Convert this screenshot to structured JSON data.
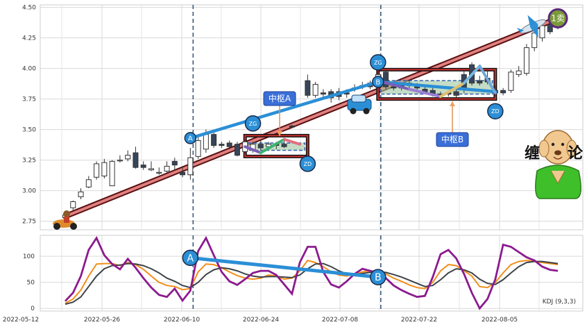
{
  "chart_data": [
    {
      "type": "candlestick",
      "title": "",
      "xlabel": "",
      "ylabel": "",
      "ylim": [
        2.68,
        4.52
      ],
      "yticks": [
        "2.75",
        "3.00",
        "3.25",
        "3.50",
        "3.75",
        "4.00",
        "4.25",
        "4.50"
      ],
      "xticks": [
        "2022-05-12",
        "2022-05-26",
        "2022-06-10",
        "2022-06-24",
        "2022-07-08",
        "2022-07-22",
        "2022-08-05"
      ],
      "grid": true,
      "candles": [
        {
          "x": 0.0,
          "o": 2.78,
          "c": 2.8,
          "h": 2.82,
          "l": 2.74,
          "up": true
        },
        {
          "x": 1.0,
          "o": 2.86,
          "c": 2.91,
          "h": 2.92,
          "l": 2.84,
          "up": true
        },
        {
          "x": 2.0,
          "o": 2.95,
          "c": 2.99,
          "h": 3.02,
          "l": 2.93,
          "up": true
        },
        {
          "x": 3.0,
          "o": 3.03,
          "c": 3.09,
          "h": 3.12,
          "l": 3.02,
          "up": true
        },
        {
          "x": 4.0,
          "o": 3.11,
          "c": 3.22,
          "h": 3.24,
          "l": 3.09,
          "up": true
        },
        {
          "x": 5.0,
          "o": 3.12,
          "c": 3.23,
          "h": 3.26,
          "l": 3.1,
          "up": true
        },
        {
          "x": 6.0,
          "o": 3.04,
          "c": 3.24,
          "h": 3.25,
          "l": 3.04,
          "up": true
        },
        {
          "x": 7.0,
          "o": 3.25,
          "c": 3.25,
          "h": 3.29,
          "l": 3.23,
          "up": true
        },
        {
          "x": 8.0,
          "o": 3.26,
          "c": 3.29,
          "h": 3.33,
          "l": 3.24,
          "up": true
        },
        {
          "x": 9.0,
          "o": 3.31,
          "c": 3.19,
          "h": 3.36,
          "l": 3.18,
          "up": false
        },
        {
          "x": 10.0,
          "o": 3.21,
          "c": 3.19,
          "h": 3.24,
          "l": 3.17,
          "up": false
        },
        {
          "x": 11.0,
          "o": 3.17,
          "c": 3.18,
          "h": 3.24,
          "l": 3.16,
          "up": true
        },
        {
          "x": 12.0,
          "o": 3.15,
          "c": 3.15,
          "h": 3.19,
          "l": 3.13,
          "up": true
        },
        {
          "x": 13.0,
          "o": 3.16,
          "c": 3.2,
          "h": 3.24,
          "l": 3.14,
          "up": true
        },
        {
          "x": 14.0,
          "o": 3.24,
          "c": 3.21,
          "h": 3.27,
          "l": 3.17,
          "up": false
        },
        {
          "x": 15.0,
          "o": 3.15,
          "c": 3.13,
          "h": 3.2,
          "l": 3.11,
          "up": false
        },
        {
          "x": 16.0,
          "o": 3.13,
          "c": 3.27,
          "h": 3.35,
          "l": 3.09,
          "up": true
        },
        {
          "x": 17.0,
          "o": 3.28,
          "c": 3.41,
          "h": 3.44,
          "l": 3.26,
          "up": true
        },
        {
          "x": 18.0,
          "o": 3.34,
          "c": 3.46,
          "h": 3.5,
          "l": 3.31,
          "up": true
        },
        {
          "x": 19.0,
          "o": 3.46,
          "c": 3.37,
          "h": 3.48,
          "l": 3.35,
          "up": false
        },
        {
          "x": 20.0,
          "o": 3.38,
          "c": 3.37,
          "h": 3.4,
          "l": 3.35,
          "up": false
        },
        {
          "x": 21.0,
          "o": 3.39,
          "c": 3.36,
          "h": 3.41,
          "l": 3.34,
          "up": false
        },
        {
          "x": 22.0,
          "o": 3.38,
          "c": 3.29,
          "h": 3.4,
          "l": 3.28,
          "up": false
        },
        {
          "x": 23.0,
          "o": 3.32,
          "c": 3.4,
          "h": 3.42,
          "l": 3.3,
          "up": true
        },
        {
          "x": 24.0,
          "o": 3.33,
          "c": 3.38,
          "h": 3.4,
          "l": 3.31,
          "up": true
        },
        {
          "x": 25.0,
          "o": 3.38,
          "c": 3.35,
          "h": 3.41,
          "l": 3.33,
          "up": false
        },
        {
          "x": 26.0,
          "o": 3.36,
          "c": 3.38,
          "h": 3.4,
          "l": 3.34,
          "up": true
        },
        {
          "x": 27.0,
          "o": 3.38,
          "c": 3.37,
          "h": 3.4,
          "l": 3.34,
          "up": false
        },
        {
          "x": 28.0,
          "o": 3.38,
          "c": 3.36,
          "h": 3.41,
          "l": 3.35,
          "up": false
        },
        {
          "x": 29.0,
          "o": 3.53,
          "c": 3.52,
          "h": 3.54,
          "l": 3.51,
          "up": false
        },
        {
          "x": 31.0,
          "o": 3.9,
          "c": 3.78,
          "h": 3.95,
          "l": 3.76,
          "up": false
        },
        {
          "x": 32.0,
          "o": 3.78,
          "c": 3.87,
          "h": 3.89,
          "l": 3.76,
          "up": true
        },
        {
          "x": 33.0,
          "o": 3.8,
          "c": 3.79,
          "h": 3.83,
          "l": 3.76,
          "up": false
        },
        {
          "x": 34.0,
          "o": 3.81,
          "c": 3.76,
          "h": 3.83,
          "l": 3.72,
          "up": false
        },
        {
          "x": 35.0,
          "o": 3.81,
          "c": 3.77,
          "h": 3.84,
          "l": 3.74,
          "up": false
        },
        {
          "x": 36.0,
          "o": 3.8,
          "c": 3.79,
          "h": 3.83,
          "l": 3.76,
          "up": false
        },
        {
          "x": 37.0,
          "o": 3.84,
          "c": 3.84,
          "h": 3.87,
          "l": 3.81,
          "up": true
        },
        {
          "x": 38.0,
          "o": 3.86,
          "c": 3.86,
          "h": 3.89,
          "l": 3.83,
          "up": true
        },
        {
          "x": 39.0,
          "o": 3.88,
          "c": 3.85,
          "h": 3.9,
          "l": 3.83,
          "up": false
        },
        {
          "x": 40.0,
          "o": 3.9,
          "c": 3.95,
          "h": 4.0,
          "l": 3.87,
          "up": true
        },
        {
          "x": 41.0,
          "o": 3.97,
          "c": 3.85,
          "h": 3.99,
          "l": 3.83,
          "up": false
        },
        {
          "x": 42.0,
          "o": 3.85,
          "c": 3.84,
          "h": 3.87,
          "l": 3.82,
          "up": false
        },
        {
          "x": 43.0,
          "o": 3.86,
          "c": 3.84,
          "h": 3.88,
          "l": 3.82,
          "up": false
        },
        {
          "x": 44.0,
          "o": 3.88,
          "c": 3.86,
          "h": 3.9,
          "l": 3.84,
          "up": false
        },
        {
          "x": 45.0,
          "o": 3.86,
          "c": 3.84,
          "h": 3.88,
          "l": 3.82,
          "up": false
        },
        {
          "x": 46.0,
          "o": 3.83,
          "c": 3.81,
          "h": 3.85,
          "l": 3.79,
          "up": false
        },
        {
          "x": 47.0,
          "o": 3.82,
          "c": 3.79,
          "h": 3.84,
          "l": 3.77,
          "up": false
        },
        {
          "x": 48.0,
          "o": 3.79,
          "c": 3.78,
          "h": 3.81,
          "l": 3.76,
          "up": false
        },
        {
          "x": 49.0,
          "o": 3.8,
          "c": 3.79,
          "h": 3.82,
          "l": 3.77,
          "up": false
        },
        {
          "x": 50.0,
          "o": 3.81,
          "c": 3.78,
          "h": 3.83,
          "l": 3.76,
          "up": false
        },
        {
          "x": 51.0,
          "o": 3.95,
          "c": 3.83,
          "h": 3.98,
          "l": 3.8,
          "up": false
        },
        {
          "x": 52.0,
          "o": 4.03,
          "c": 3.88,
          "h": 4.05,
          "l": 3.86,
          "up": false
        },
        {
          "x": 53.0,
          "o": 3.9,
          "c": 3.88,
          "h": 3.94,
          "l": 3.86,
          "up": false
        },
        {
          "x": 54.0,
          "o": 3.92,
          "c": 3.89,
          "h": 3.99,
          "l": 3.87,
          "up": false
        },
        {
          "x": 55.0,
          "o": 3.82,
          "c": 3.8,
          "h": 3.86,
          "l": 3.77,
          "up": false
        },
        {
          "x": 56.0,
          "o": 3.82,
          "c": 3.8,
          "h": 3.84,
          "l": 3.78,
          "up": false
        },
        {
          "x": 57.0,
          "o": 3.82,
          "c": 3.97,
          "h": 3.99,
          "l": 3.8,
          "up": true
        },
        {
          "x": 58.0,
          "o": 3.95,
          "c": 3.98,
          "h": 4.02,
          "l": 3.93,
          "up": true
        },
        {
          "x": 59.0,
          "o": 3.96,
          "c": 4.17,
          "h": 4.2,
          "l": 3.94,
          "up": true
        },
        {
          "x": 60.0,
          "o": 4.17,
          "c": 4.29,
          "h": 4.32,
          "l": 4.14,
          "up": true
        },
        {
          "x": 61.0,
          "o": 4.25,
          "c": 4.35,
          "h": 4.38,
          "l": 4.22,
          "up": true
        },
        {
          "x": 62.0,
          "o": 4.36,
          "c": 4.3,
          "h": 4.4,
          "l": 4.28,
          "up": false
        },
        {
          "x": 63.0,
          "o": 4.35,
          "c": 4.39,
          "h": 4.42,
          "l": 4.32,
          "up": true
        }
      ],
      "trend_line": {
        "from": {
          "x": 0.0,
          "y": 2.79
        },
        "to": {
          "x": 63.0,
          "y": 4.41
        }
      },
      "bi_lines": [
        {
          "from": {
            "x": 16.0,
            "y": 3.43
          },
          "to": {
            "x": 40.0,
            "y": 3.89
          },
          "color": "#2b8fd6"
        },
        {
          "from": {
            "x": 40.0,
            "y": 3.89
          },
          "to": {
            "x": 55.0,
            "y": 3.81
          },
          "color": "#2b8fd6"
        }
      ],
      "zhongshu": [
        {
          "label": "中枢A",
          "x1": 23.0,
          "x2": 31.0,
          "y1": 3.28,
          "y2": 3.45,
          "inner_y1": 3.33,
          "inner_y2": 3.39,
          "zg": 3.45,
          "zd": 3.28
        },
        {
          "label": "中枢B",
          "x1": 40.0,
          "x2": 55.0,
          "y1": 3.75,
          "y2": 3.99,
          "inner_y1": 3.79,
          "inner_y2": 3.9,
          "zg": 3.99,
          "zd": 3.75
        }
      ],
      "zhongshu_segments": [
        {
          "pts": [
            [
              23.0,
              3.36
            ],
            [
              25.0,
              3.31
            ],
            [
              28.0,
              3.42
            ],
            [
              30.0,
              3.38
            ]
          ],
          "colors": [
            "#7a5fb8",
            "#3cb371",
            "#e07080"
          ]
        },
        {
          "pts": [
            [
              40.0,
              3.9
            ],
            [
              44.0,
              3.83
            ],
            [
              48.0,
              3.77
            ],
            [
              51.0,
              3.88
            ],
            [
              53.0,
              4.02
            ],
            [
              55.0,
              3.8
            ]
          ],
          "colors": [
            "#7a5fb8",
            "#9b7fd4",
            "#e0c070",
            "#7ab8e0",
            "#6fa8d8"
          ]
        }
      ],
      "markers": [
        {
          "label": "A",
          "x": 16.0,
          "y": 3.43
        },
        {
          "label": "B",
          "x": 40.0,
          "y": 3.89
        },
        {
          "label": "ZG",
          "x": 24.0,
          "y": 3.55
        },
        {
          "label": "ZD",
          "x": 31.0,
          "y": 3.22
        },
        {
          "label": "ZG",
          "x": 40.0,
          "y": 4.05
        },
        {
          "label": "ZD",
          "x": 55.0,
          "y": 3.65
        }
      ],
      "sell_signal": {
        "label": "1卖",
        "x": 63.0,
        "y": 4.41
      },
      "vlines_x": [
        16.0,
        40.0
      ]
    },
    {
      "type": "line",
      "title": "",
      "legend_text": "KDJ (9,3,3)",
      "ylim": [
        -5,
        140
      ],
      "yticks": [
        "0",
        "50",
        "100"
      ],
      "grid": true,
      "x": [
        0,
        1,
        2,
        3,
        4,
        5,
        6,
        7,
        8,
        9,
        10,
        11,
        12,
        13,
        14,
        15,
        16,
        17,
        18,
        19,
        20,
        21,
        22,
        23,
        24,
        25,
        26,
        27,
        28,
        29,
        30,
        31,
        32,
        33,
        34,
        35,
        36,
        37,
        38,
        39,
        40,
        41,
        42,
        43,
        44,
        45,
        46,
        47,
        48,
        49,
        50,
        51,
        52,
        53,
        54,
        55,
        56,
        57,
        58,
        59,
        60,
        61,
        62,
        63
      ],
      "series": [
        {
          "name": "K",
          "color": "#f28e1a",
          "values": [
            10,
            18,
            35,
            62,
            85,
            86,
            86,
            82,
            88,
            84,
            75,
            62,
            50,
            44,
            42,
            36,
            38,
            70,
            85,
            84,
            78,
            70,
            63,
            58,
            56,
            58,
            64,
            62,
            56,
            58,
            72,
            92,
            88,
            80,
            70,
            64,
            62,
            66,
            70,
            72,
            70,
            66,
            58,
            52,
            45,
            40,
            38,
            50,
            72,
            84,
            82,
            72,
            62,
            42,
            40,
            50,
            68,
            84,
            90,
            92,
            90,
            88,
            86,
            84
          ]
        },
        {
          "name": "D",
          "color": "#3d4348",
          "values": [
            8,
            12,
            22,
            42,
            62,
            76,
            82,
            83,
            86,
            85,
            82,
            76,
            68,
            58,
            52,
            44,
            40,
            50,
            65,
            74,
            78,
            76,
            72,
            66,
            62,
            60,
            61,
            61,
            60,
            59,
            64,
            76,
            85,
            86,
            80,
            72,
            66,
            65,
            67,
            69,
            70,
            69,
            65,
            60,
            54,
            48,
            42,
            44,
            55,
            68,
            76,
            74,
            68,
            56,
            48,
            46,
            55,
            68,
            80,
            88,
            90,
            90,
            88,
            86
          ]
        },
        {
          "name": "J",
          "color": "#8b1a8f",
          "values": [
            14,
            30,
            62,
            112,
            135,
            102,
            85,
            75,
            95,
            78,
            58,
            40,
            26,
            22,
            38,
            15,
            34,
            110,
            135,
            102,
            70,
            52,
            45,
            56,
            68,
            72,
            72,
            64,
            46,
            28,
            88,
            118,
            118,
            70,
            46,
            40,
            52,
            66,
            76,
            72,
            68,
            58,
            44,
            35,
            28,
            22,
            24,
            60,
            104,
            112,
            96,
            66,
            30,
            0,
            18,
            56,
            122,
            118,
            108,
            98,
            92,
            80,
            74,
            72
          ]
        }
      ],
      "bi_line": {
        "from": {
          "x": 16.0,
          "y": 97
        },
        "to": {
          "x": 40.0,
          "y": 60
        },
        "color": "#2b8fd6"
      },
      "markers": [
        {
          "label": "A",
          "x": 16.0,
          "y": 97
        },
        {
          "label": "B",
          "x": 40.0,
          "y": 60
        }
      ],
      "vlines_x": [
        16.0,
        40.0
      ]
    }
  ],
  "decor": {
    "title_glyph_left": "缠",
    "title_glyph_right": "论"
  }
}
